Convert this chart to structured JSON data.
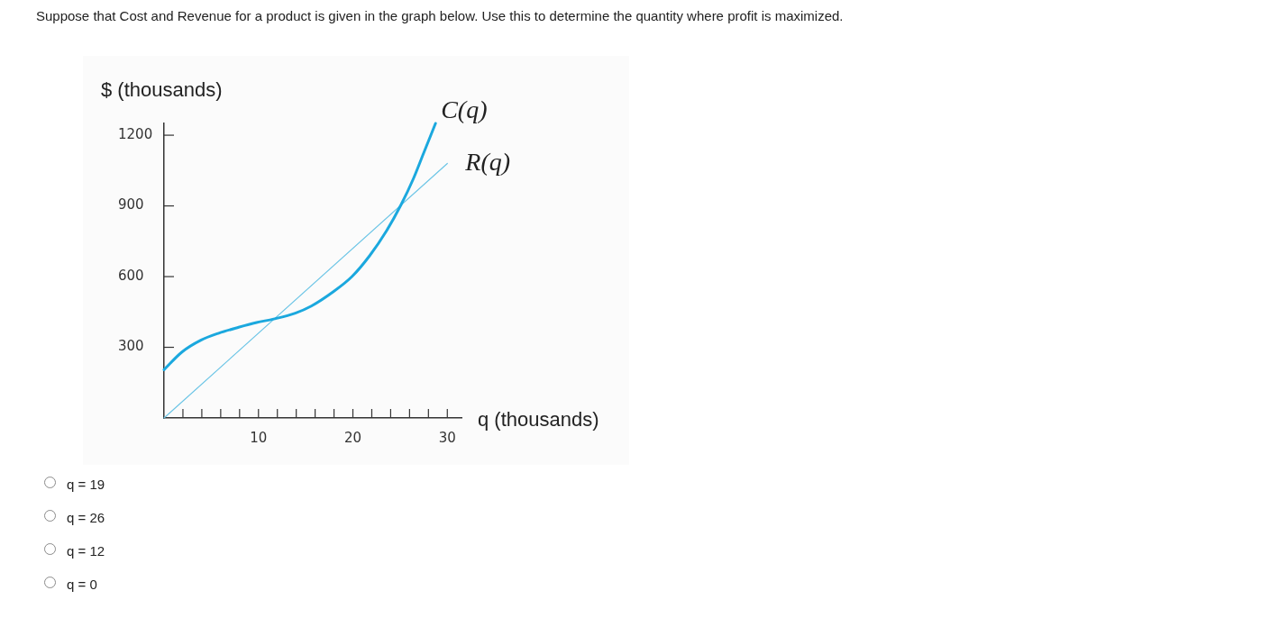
{
  "chart_data": {
    "type": "line",
    "title": "Suppose that Cost and Revenue for a product is given in the graph below. Use this to determine the quantity where profit is maximized.",
    "xlabel": "q (thousands)",
    "ylabel": "$ (thousands)",
    "series": [
      {
        "name": "C(q)",
        "color": "#1ba8de",
        "x": [
          0,
          1.9,
          3.9,
          5.8,
          7.9,
          9.8,
          11.6,
          13.9,
          15.6,
          17.9,
          19.9,
          21.8,
          23.5,
          25.1,
          26.4,
          27.5,
          28.75
        ],
        "values": [
          205,
          280,
          330,
          360,
          385,
          405,
          420,
          445,
          475,
          535,
          600,
          690,
          790,
          905,
          1015,
          1125,
          1250
        ]
      },
      {
        "name": "R(q)",
        "color": "#6cc5e6",
        "x": [
          0,
          30
        ],
        "values": [
          0,
          1080
        ]
      }
    ],
    "xlim": [
      0,
      31.5
    ],
    "xticks": [
      {
        "value": 2,
        "label": null
      },
      {
        "value": 4,
        "label": null
      },
      {
        "value": 6,
        "label": null
      },
      {
        "value": 8,
        "label": null
      },
      10,
      {
        "value": 12,
        "label": null
      },
      {
        "value": 14,
        "label": null
      },
      {
        "value": 16,
        "label": null
      },
      {
        "value": 18,
        "label": null
      },
      20,
      {
        "value": 22,
        "label": null
      },
      {
        "value": 24,
        "label": null
      },
      {
        "value": 26,
        "label": null
      },
      {
        "value": 28,
        "label": null
      },
      30
    ],
    "ylim": [
      0,
      1250
    ],
    "yticks": [
      300,
      600,
      900,
      1200
    ],
    "marker": "none",
    "annotations": [
      "q = 19",
      "q = 26",
      "q = 12",
      "q = 0"
    ]
  }
}
